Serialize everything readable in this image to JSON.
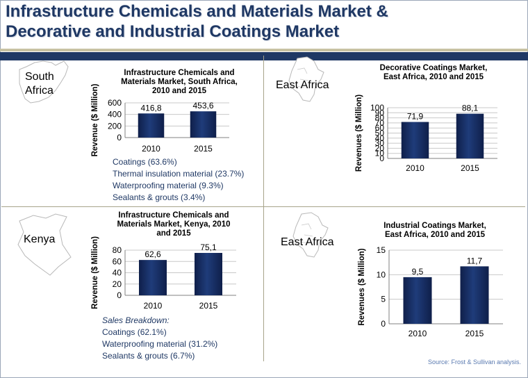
{
  "slide": {
    "title_line1": "Infrastructure Chemicals and Materials Market &",
    "title_line2": "Decorative and Industrial Coatings Market",
    "source": "Source: Frost & Sullivan analysis."
  },
  "colors": {
    "title": "#1f3864",
    "bar": "#1f3c7a",
    "bar_dark": "#0f1f4a",
    "breakdown_text": "#1f3864"
  },
  "regions": {
    "q1": {
      "line1": "South",
      "line2": "Africa"
    },
    "q2": {
      "label": "East Africa"
    },
    "q3": {
      "label": "Kenya"
    },
    "q4": {
      "label": "East Africa"
    }
  },
  "breakdowns": {
    "south_africa": [
      "Coatings (63.6%)",
      "Thermal insulation material (23.7%)",
      "Waterproofing material (9.3%)",
      "Sealants & grouts (3.4%)"
    ],
    "kenya_heading": "Sales Breakdown:",
    "kenya": [
      "Coatings (62.1%)",
      "Waterproofing material (31.2%)",
      "Sealants & grouts (6.7%)"
    ]
  },
  "chart_data": [
    {
      "type": "bar",
      "title": [
        "Infrastructure Chemicals and",
        "Materials Market, South Africa,",
        "2010 and 2015"
      ],
      "categories": [
        "2010",
        "2015"
      ],
      "values": [
        416.8,
        453.6
      ],
      "value_labels": [
        "416,8",
        "453,6"
      ],
      "ylabel": "Revenue ($ Million)",
      "ylim": [
        0,
        600
      ],
      "yticks": [
        0,
        200,
        400,
        600
      ]
    },
    {
      "type": "bar",
      "title": [
        "Decorative Coatings Market,",
        "East Africa, 2010 and 2015"
      ],
      "categories": [
        "2010",
        "2015"
      ],
      "values": [
        71.9,
        88.1
      ],
      "value_labels": [
        "71,9",
        "88,1"
      ],
      "ylabel": "Revenues ($ Million)",
      "ylim": [
        0,
        100
      ],
      "yticks": [
        0,
        10,
        20,
        30,
        40,
        50,
        60,
        70,
        80,
        90,
        100
      ]
    },
    {
      "type": "bar",
      "title": [
        "Infrastructure Chemicals and",
        "Materials Market, Kenya, 2010",
        "and 2015"
      ],
      "categories": [
        "2010",
        "2015"
      ],
      "values": [
        62.6,
        75.1
      ],
      "value_labels": [
        "62,6",
        "75,1"
      ],
      "ylabel": "Revenue ($ Million)",
      "ylim": [
        0,
        80
      ],
      "yticks": [
        0,
        20,
        40,
        60,
        80
      ]
    },
    {
      "type": "bar",
      "title": [
        "Industrial Coatings Market,",
        "East Africa, 2010 and 2015"
      ],
      "categories": [
        "2010",
        "2015"
      ],
      "values": [
        9.5,
        11.7
      ],
      "value_labels": [
        "9,5",
        "11,7"
      ],
      "ylabel": "Revenues ($ Million)",
      "ylim": [
        0,
        15
      ],
      "yticks": [
        0,
        5,
        10,
        15
      ]
    }
  ]
}
